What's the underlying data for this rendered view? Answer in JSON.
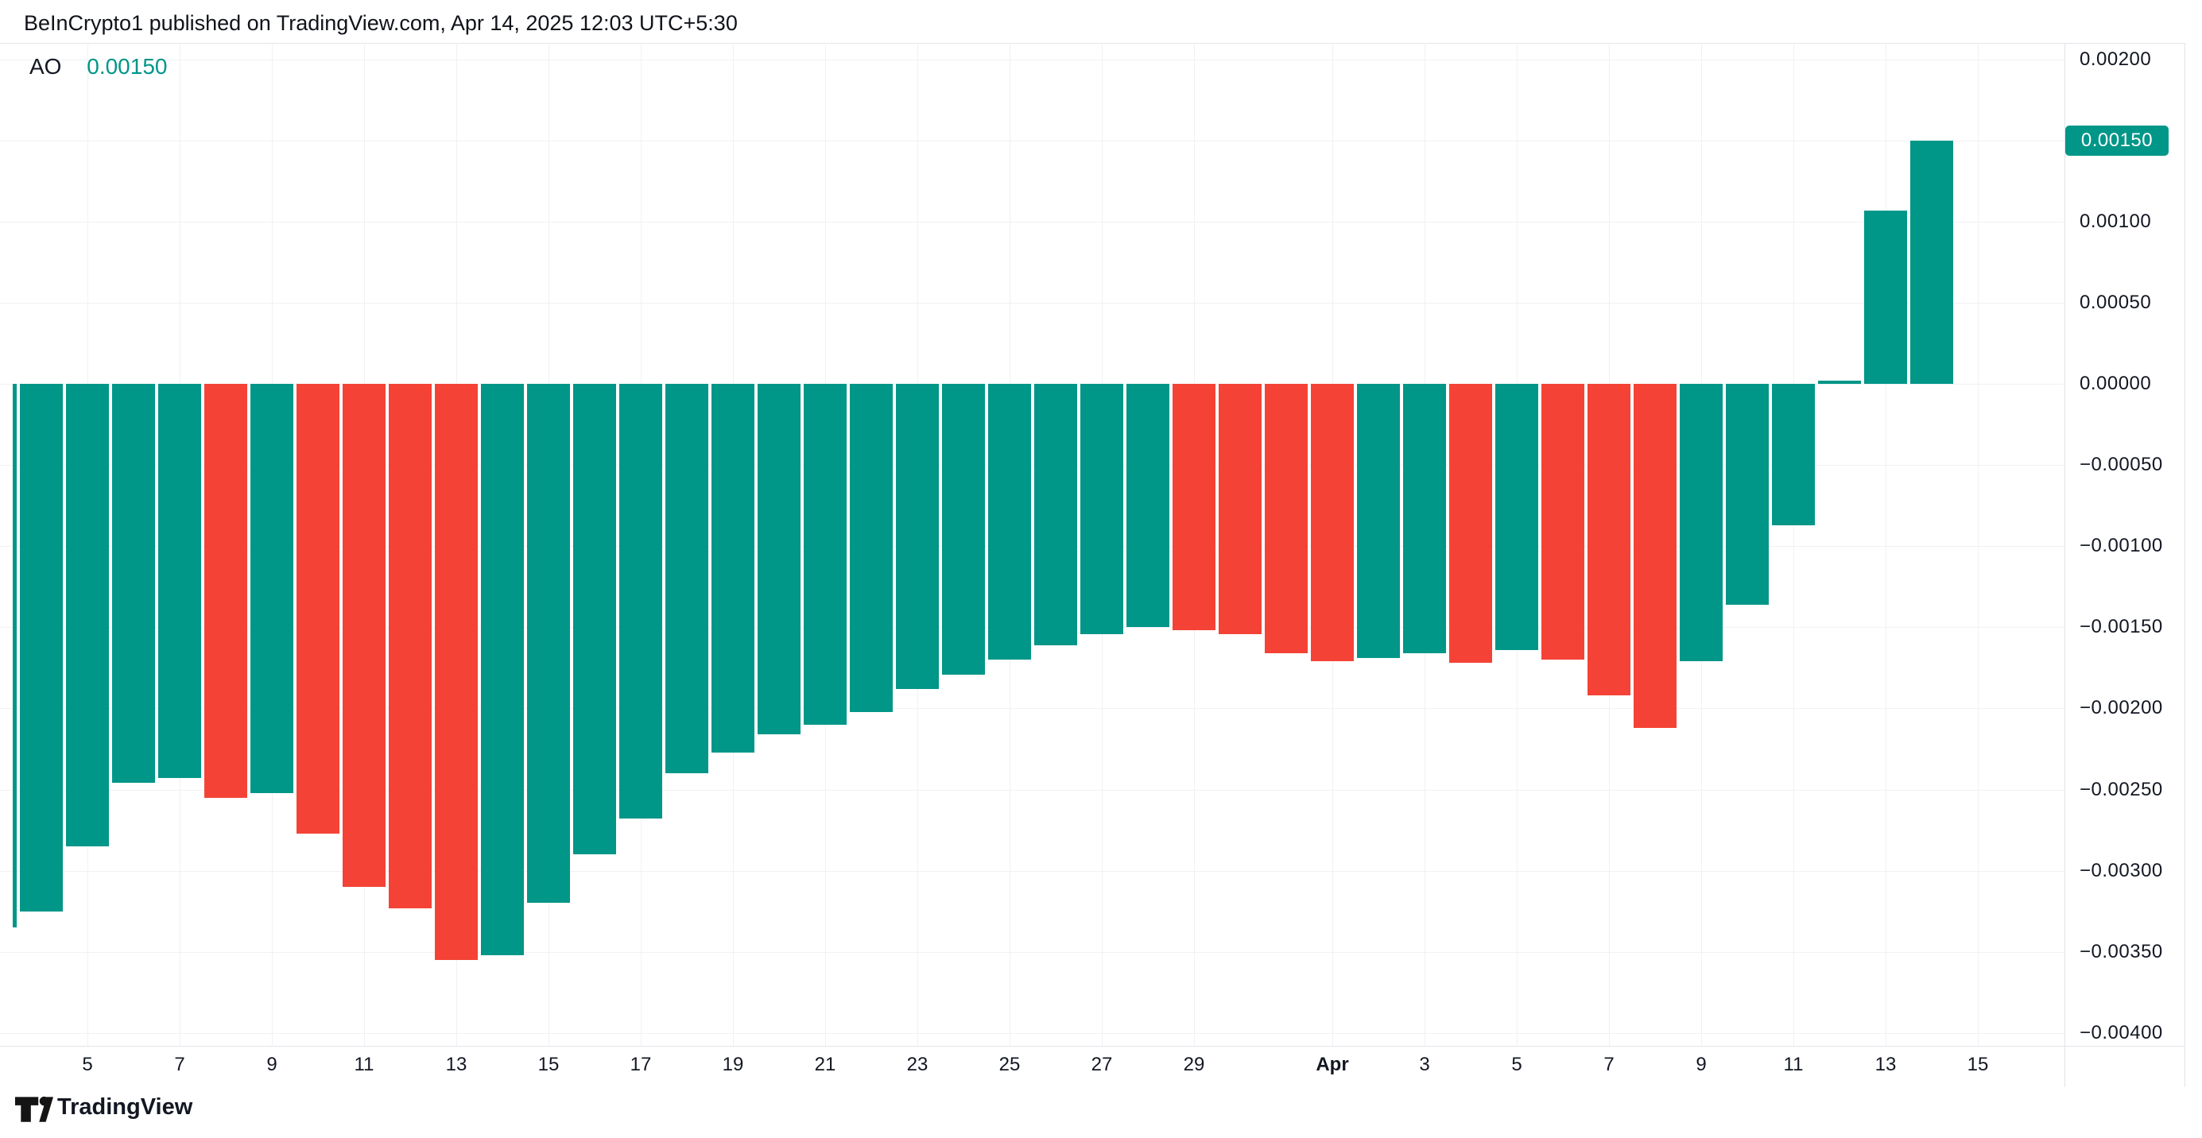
{
  "header": {
    "attribution": "BeInCrypto1 published on TradingView.com, Apr 14, 2025 12:03 UTC+5:30"
  },
  "indicator": {
    "name": "AO",
    "value": "0.00150"
  },
  "palette": {
    "rising": "#009688",
    "falling": "#F44336",
    "badge_bg": "#009688",
    "badge_text": "#FFFFFF",
    "axis_text": "#131722",
    "grid": "#F0F1F4",
    "border": "#E1E4EA"
  },
  "chart_data": {
    "type": "bar",
    "title": "AO (Awesome Oscillator) daily histogram",
    "x": [
      "Mar 3",
      "Mar 4",
      "Mar 5",
      "Mar 6",
      "Mar 7",
      "Mar 8",
      "Mar 9",
      "Mar 10",
      "Mar 11",
      "Mar 12",
      "Mar 13",
      "Mar 14",
      "Mar 15",
      "Mar 16",
      "Mar 17",
      "Mar 18",
      "Mar 19",
      "Mar 20",
      "Mar 21",
      "Mar 22",
      "Mar 23",
      "Mar 24",
      "Mar 25",
      "Mar 26",
      "Mar 27",
      "Mar 28",
      "Mar 29",
      "Mar 30",
      "Mar 31",
      "Apr 1",
      "Apr 2",
      "Apr 3",
      "Apr 4",
      "Apr 5",
      "Apr 6",
      "Apr 7",
      "Apr 8",
      "Apr 9",
      "Apr 10",
      "Apr 11",
      "Apr 12",
      "Apr 13",
      "Apr 14"
    ],
    "values": [
      -0.00335,
      -0.00325,
      -0.00285,
      -0.00246,
      -0.00243,
      -0.00255,
      -0.00252,
      -0.00277,
      -0.0031,
      -0.00323,
      -0.00355,
      -0.00352,
      -0.0032,
      -0.0029,
      -0.00268,
      -0.0024,
      -0.00227,
      -0.00216,
      -0.0021,
      -0.00202,
      -0.00188,
      -0.00179,
      -0.0017,
      -0.00161,
      -0.00154,
      -0.0015,
      -0.00152,
      -0.00154,
      -0.00166,
      -0.00171,
      -0.00169,
      -0.00166,
      -0.00172,
      -0.00164,
      -0.0017,
      -0.00192,
      -0.00212,
      -0.00171,
      -0.00136,
      -0.00087,
      2e-05,
      0.00107,
      0.0015
    ],
    "color_rule": "bar is rising color when value >= previous value, falling color otherwise",
    "rising_color": "#009688",
    "falling_color": "#F44336",
    "ylabel": "",
    "xlabel": "",
    "ylim": [
      -0.00395,
      0.0021
    ],
    "grid": true,
    "legend_position": "none",
    "y_ticks": [
      {
        "label": "0.00200",
        "value": 0.002
      },
      {
        "label": "0.00150",
        "value": 0.0015
      },
      {
        "label": "0.00100",
        "value": 0.001
      },
      {
        "label": "0.00050",
        "value": 0.0005
      },
      {
        "label": "0.00000",
        "value": 0.0
      },
      {
        "label": "−0.00050",
        "value": -0.0005
      },
      {
        "label": "−0.00100",
        "value": -0.001
      },
      {
        "label": "−0.00150",
        "value": -0.0015
      },
      {
        "label": "−0.00200",
        "value": -0.002
      },
      {
        "label": "−0.00250",
        "value": -0.0025
      },
      {
        "label": "−0.00300",
        "value": -0.003
      },
      {
        "label": "−0.00350",
        "value": -0.0035
      },
      {
        "label": "−0.00400",
        "value": -0.004
      }
    ],
    "x_ticks": [
      {
        "label": "5",
        "day_index": 2,
        "bold": false
      },
      {
        "label": "7",
        "day_index": 4,
        "bold": false
      },
      {
        "label": "9",
        "day_index": 6,
        "bold": false
      },
      {
        "label": "11",
        "day_index": 8,
        "bold": false
      },
      {
        "label": "13",
        "day_index": 10,
        "bold": false
      },
      {
        "label": "15",
        "day_index": 12,
        "bold": false
      },
      {
        "label": "17",
        "day_index": 14,
        "bold": false
      },
      {
        "label": "19",
        "day_index": 16,
        "bold": false
      },
      {
        "label": "21",
        "day_index": 18,
        "bold": false
      },
      {
        "label": "23",
        "day_index": 20,
        "bold": false
      },
      {
        "label": "25",
        "day_index": 22,
        "bold": false
      },
      {
        "label": "27",
        "day_index": 24,
        "bold": false
      },
      {
        "label": "29",
        "day_index": 26,
        "bold": false
      },
      {
        "label": "Apr",
        "day_index": 29,
        "bold": true
      },
      {
        "label": "3",
        "day_index": 31,
        "bold": false
      },
      {
        "label": "5",
        "day_index": 33,
        "bold": false
      },
      {
        "label": "7",
        "day_index": 35,
        "bold": false
      },
      {
        "label": "9",
        "day_index": 37,
        "bold": false
      },
      {
        "label": "11",
        "day_index": 39,
        "bold": false
      },
      {
        "label": "13",
        "day_index": 41,
        "bold": false
      },
      {
        "label": "15",
        "day_index": 43,
        "bold": false
      }
    ],
    "current_value_badge": {
      "label": "0.00150",
      "value": 0.0015
    }
  },
  "footer": {
    "brand": "TradingView"
  }
}
